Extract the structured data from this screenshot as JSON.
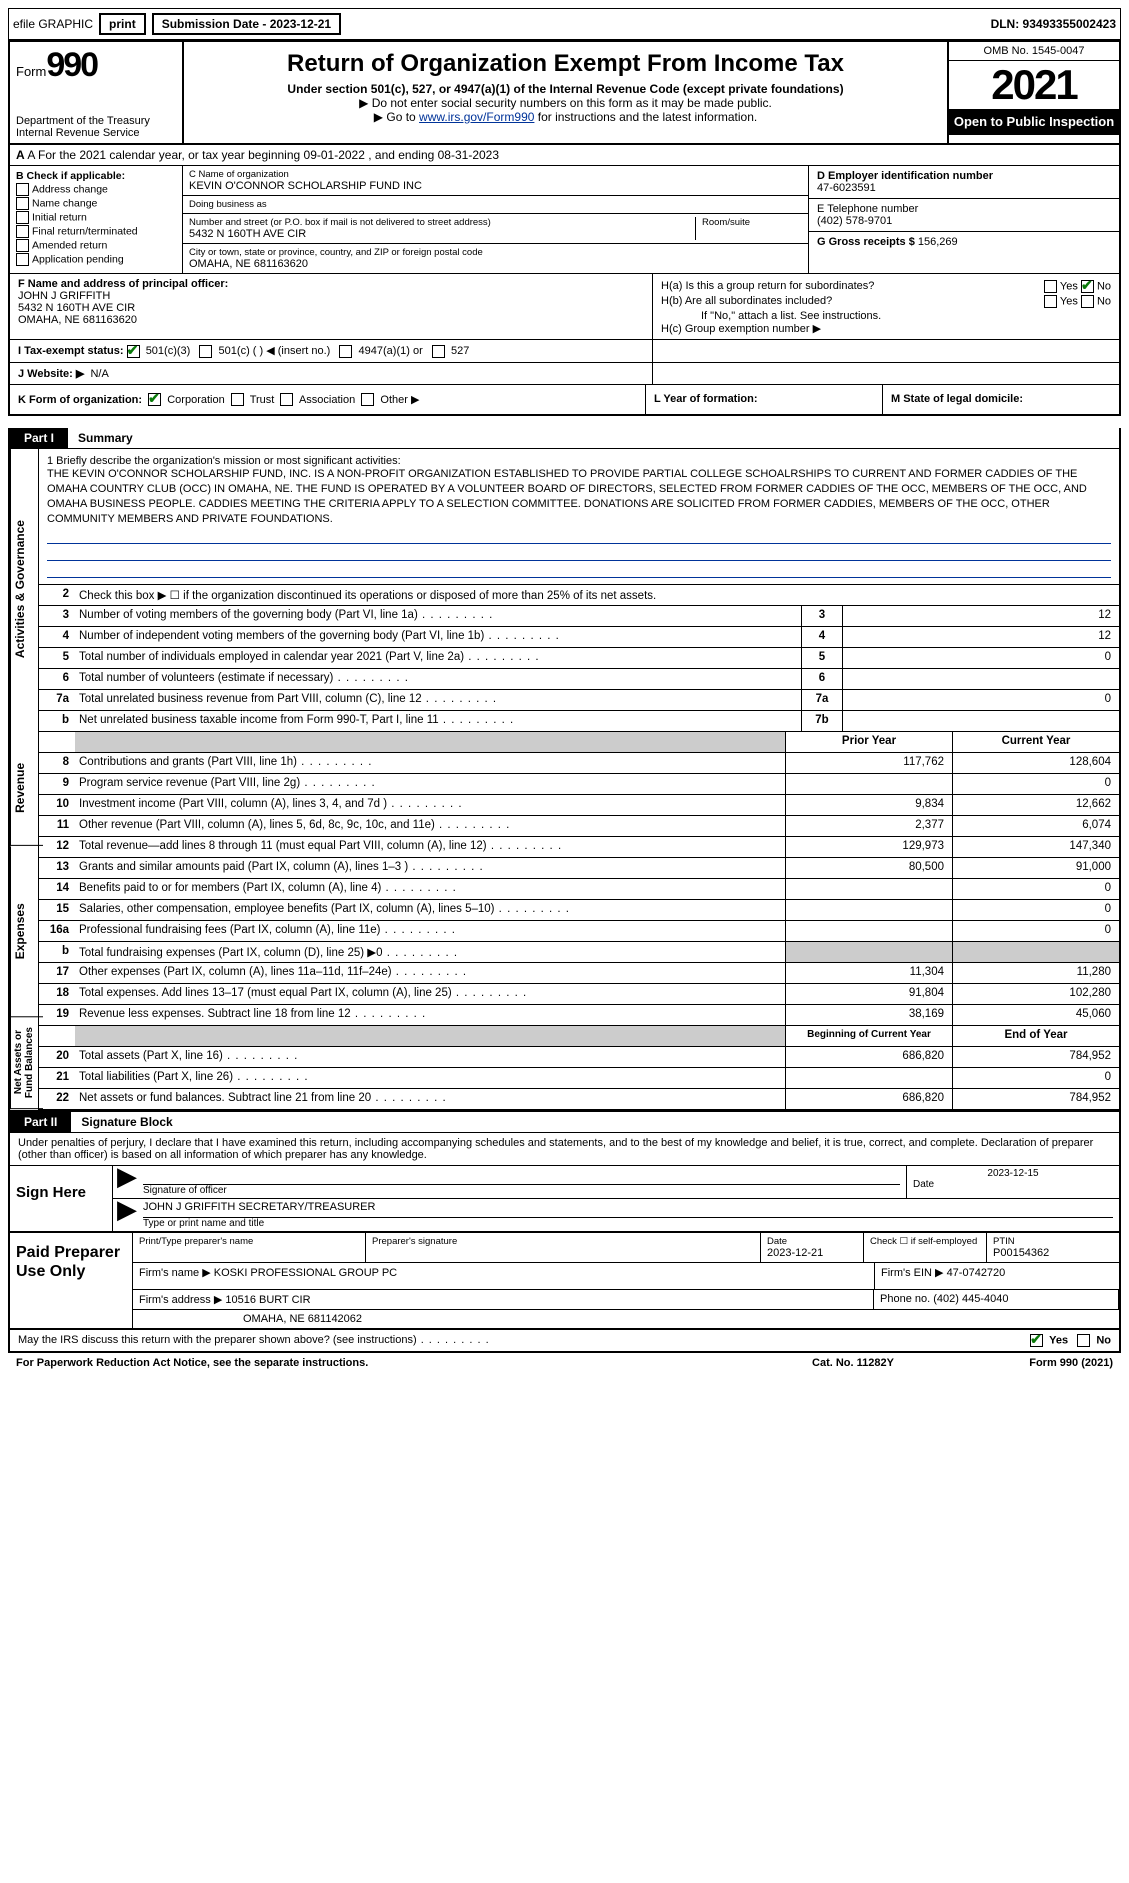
{
  "topbar": {
    "efile": "efile GRAPHIC",
    "print": "print",
    "subdate_lbl": "Submission Date - 2023-12-21",
    "dln": "DLN: 93493355002423"
  },
  "header": {
    "form_word": "Form",
    "form_num": "990",
    "dept": "Department of the Treasury\nInternal Revenue Service",
    "title": "Return of Organization Exempt From Income Tax",
    "sub": "Under section 501(c), 527, or 4947(a)(1) of the Internal Revenue Code (except private foundations)",
    "sub2": "▶ Do not enter social security numbers on this form as it may be made public.",
    "sub3_pre": "▶ Go to ",
    "sub3_link": "www.irs.gov/Form990",
    "sub3_post": " for instructions and the latest information.",
    "omb": "OMB No. 1545-0047",
    "year": "2021",
    "open": "Open to Public Inspection"
  },
  "row_a": "A For the 2021 calendar year, or tax year beginning 09-01-2022   , and ending 08-31-2023",
  "b": {
    "lbl": "B Check if applicable:",
    "items": [
      "Address change",
      "Name change",
      "Initial return",
      "Final return/terminated",
      "Amended return",
      "Application pending"
    ]
  },
  "c": {
    "name_lbl": "C Name of organization",
    "name": "KEVIN O'CONNOR SCHOLARSHIP FUND INC",
    "dba_lbl": "Doing business as",
    "dba": "",
    "addr_lbl": "Number and street (or P.O. box if mail is not delivered to street address)",
    "room_lbl": "Room/suite",
    "addr": "5432 N 160TH AVE CIR",
    "city_lbl": "City or town, state or province, country, and ZIP or foreign postal code",
    "city": "OMAHA, NE  681163620"
  },
  "d": {
    "lbl": "D Employer identification number",
    "val": "47-6023591"
  },
  "e": {
    "lbl": "E Telephone number",
    "val": "(402) 578-9701"
  },
  "g": {
    "lbl": "G Gross receipts $",
    "val": "156,269"
  },
  "f": {
    "lbl": "F  Name and address of principal officer:",
    "name": "JOHN J GRIFFITH",
    "addr": "5432 N 160TH AVE CIR",
    "city": "OMAHA, NE  681163620"
  },
  "h": {
    "a": "H(a)  Is this a group return for subordinates?",
    "a_yes": "Yes",
    "a_no": "No",
    "b": "H(b)  Are all subordinates included?",
    "b_yes": "Yes",
    "b_no": "No",
    "b_note": "If \"No,\" attach a list. See instructions.",
    "c": "H(c)  Group exemption number ▶"
  },
  "i": {
    "lbl": "I   Tax-exempt status:",
    "opt1": "501(c)(3)",
    "opt2": "501(c) (   ) ◀ (insert no.)",
    "opt3": "4947(a)(1) or",
    "opt4": "527"
  },
  "j": {
    "lbl": "J   Website: ▶",
    "val": "N/A"
  },
  "k": {
    "lbl": "K Form of organization:",
    "opts": [
      "Corporation",
      "Trust",
      "Association",
      "Other ▶"
    ]
  },
  "l": "L Year of formation:",
  "m": "M State of legal domicile:",
  "part1": {
    "tag": "Part I",
    "title": "Summary"
  },
  "vtabs": {
    "gov": "Activities & Governance",
    "rev": "Revenue",
    "exp": "Expenses",
    "net": "Net Assets or\nFund Balances"
  },
  "mission": {
    "lbl": "1   Briefly describe the organization's mission or most significant activities:",
    "txt": "THE KEVIN O'CONNOR SCHOLARSHIP FUND, INC. IS A NON-PROFIT ORGANIZATION ESTABLISHED TO PROVIDE PARTIAL COLLEGE SCHOALRSHIPS TO CURRENT AND FORMER CADDIES OF THE OMAHA COUNTRY CLUB (OCC) IN OMAHA, NE. THE FUND IS OPERATED BY A VOLUNTEER BOARD OF DIRECTORS, SELECTED FROM FORMER CADDIES OF THE OCC, MEMBERS OF THE OCC, AND OMAHA BUSINESS PEOPLE. CADDIES MEETING THE CRITERIA APPLY TO A SELECTION COMMITTEE. DONATIONS ARE SOLICITED FROM FORMER CADDIES, MEMBERS OF THE OCC, OTHER COMMUNITY MEMBERS AND PRIVATE FOUNDATIONS."
  },
  "gov_rows": [
    {
      "n": "2",
      "d": "Check this box ▶ ☐ if the organization discontinued its operations or disposed of more than 25% of its net assets."
    },
    {
      "n": "3",
      "d": "Number of voting members of the governing body (Part VI, line 1a)",
      "box": "3",
      "v": "12"
    },
    {
      "n": "4",
      "d": "Number of independent voting members of the governing body (Part VI, line 1b)",
      "box": "4",
      "v": "12"
    },
    {
      "n": "5",
      "d": "Total number of individuals employed in calendar year 2021 (Part V, line 2a)",
      "box": "5",
      "v": "0"
    },
    {
      "n": "6",
      "d": "Total number of volunteers (estimate if necessary)",
      "box": "6",
      "v": ""
    },
    {
      "n": "7a",
      "d": "Total unrelated business revenue from Part VIII, column (C), line 12",
      "box": "7a",
      "v": "0"
    },
    {
      "n": "b",
      "d": "Net unrelated business taxable income from Form 990-T, Part I, line 11",
      "box": "7b",
      "v": ""
    }
  ],
  "col_hdr": {
    "prior": "Prior Year",
    "current": "Current Year"
  },
  "rev_rows": [
    {
      "n": "8",
      "d": "Contributions and grants (Part VIII, line 1h)",
      "p": "117,762",
      "c": "128,604"
    },
    {
      "n": "9",
      "d": "Program service revenue (Part VIII, line 2g)",
      "p": "",
      "c": "0"
    },
    {
      "n": "10",
      "d": "Investment income (Part VIII, column (A), lines 3, 4, and 7d )",
      "p": "9,834",
      "c": "12,662"
    },
    {
      "n": "11",
      "d": "Other revenue (Part VIII, column (A), lines 5, 6d, 8c, 9c, 10c, and 11e)",
      "p": "2,377",
      "c": "6,074"
    },
    {
      "n": "12",
      "d": "Total revenue—add lines 8 through 11 (must equal Part VIII, column (A), line 12)",
      "p": "129,973",
      "c": "147,340"
    }
  ],
  "exp_rows": [
    {
      "n": "13",
      "d": "Grants and similar amounts paid (Part IX, column (A), lines 1–3 )",
      "p": "80,500",
      "c": "91,000"
    },
    {
      "n": "14",
      "d": "Benefits paid to or for members (Part IX, column (A), line 4)",
      "p": "",
      "c": "0"
    },
    {
      "n": "15",
      "d": "Salaries, other compensation, employee benefits (Part IX, column (A), lines 5–10)",
      "p": "",
      "c": "0"
    },
    {
      "n": "16a",
      "d": "Professional fundraising fees (Part IX, column (A), line 11e)",
      "p": "",
      "c": "0"
    },
    {
      "n": "b",
      "d": "Total fundraising expenses (Part IX, column (D), line 25) ▶0",
      "p": "SHADE",
      "c": "SHADE"
    },
    {
      "n": "17",
      "d": "Other expenses (Part IX, column (A), lines 11a–11d, 11f–24e)",
      "p": "11,304",
      "c": "11,280"
    },
    {
      "n": "18",
      "d": "Total expenses. Add lines 13–17 (must equal Part IX, column (A), line 25)",
      "p": "91,804",
      "c": "102,280"
    },
    {
      "n": "19",
      "d": "Revenue less expenses. Subtract line 18 from line 12",
      "p": "38,169",
      "c": "45,060"
    }
  ],
  "net_hdr": {
    "beg": "Beginning of Current Year",
    "end": "End of Year"
  },
  "net_rows": [
    {
      "n": "20",
      "d": "Total assets (Part X, line 16)",
      "p": "686,820",
      "c": "784,952"
    },
    {
      "n": "21",
      "d": "Total liabilities (Part X, line 26)",
      "p": "",
      "c": "0"
    },
    {
      "n": "22",
      "d": "Net assets or fund balances. Subtract line 21 from line 20",
      "p": "686,820",
      "c": "784,952"
    }
  ],
  "part2": {
    "tag": "Part II",
    "title": "Signature Block"
  },
  "sig_under": "Under penalties of perjury, I declare that I have examined this return, including accompanying schedules and statements, and to the best of my knowledge and belief, it is true, correct, and complete. Declaration of preparer (other than officer) is based on all information of which preparer has any knowledge.",
  "sign": {
    "here": "Sign Here",
    "sig_lbl": "Signature of officer",
    "date_lbl": "Date",
    "date_val": "2023-12-15",
    "name": "JOHN J GRIFFITH  SECRETARY/TREASURER",
    "name_lbl": "Type or print name and title"
  },
  "paid": {
    "title": "Paid Preparer Use Only",
    "r1": {
      "c1_lbl": "Print/Type preparer's name",
      "c2_lbl": "Preparer's signature",
      "c3_lbl": "Date",
      "c3_val": "2023-12-21",
      "c4_lbl": "Check ☐ if self-employed",
      "c5_lbl": "PTIN",
      "c5_val": "P00154362"
    },
    "r2": {
      "firm_lbl": "Firm's name    ▶",
      "firm": "KOSKI PROFESSIONAL GROUP PC",
      "ein_lbl": "Firm's EIN ▶",
      "ein": "47-0742720"
    },
    "r3": {
      "addr_lbl": "Firm's address ▶",
      "addr": "10516 BURT CIR",
      "phone_lbl": "Phone no.",
      "phone": "(402) 445-4040",
      "city": "OMAHA, NE  681142062"
    }
  },
  "footer": {
    "discuss": "May the IRS discuss this return with the preparer shown above? (see instructions)",
    "yes": "Yes",
    "no": "No"
  },
  "footer2": {
    "pra": "For Paperwork Reduction Act Notice, see the separate instructions.",
    "cat": "Cat. No. 11282Y",
    "form": "Form 990 (2021)"
  }
}
